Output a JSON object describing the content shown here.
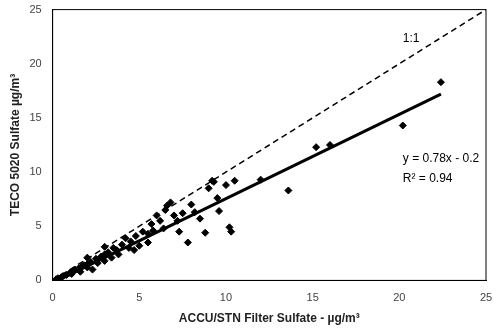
{
  "chart_data": {
    "type": "scatter",
    "x_label": "ACCU/STN Filter Sulfate - µg/m³",
    "y_label": "TECO 5020 Sulfate µg/m³",
    "xlim": [
      0,
      25
    ],
    "xticks": [
      0,
      5,
      10,
      15,
      20,
      25
    ],
    "ylim": [
      0,
      25
    ],
    "yticks": [
      0,
      5,
      10,
      15,
      20,
      25
    ],
    "grid": false,
    "series": [
      {
        "type": "scatter",
        "color": "#000000",
        "marker": "diamond",
        "x": [
          0.2,
          0.3,
          0.5,
          0.6,
          0.8,
          1.0,
          1.1,
          1.2,
          1.3,
          1.5,
          1.6,
          1.7,
          1.8,
          2.0,
          2.0,
          2.0,
          2.2,
          2.3,
          2.5,
          2.6,
          2.8,
          3.0,
          3.0,
          3.0,
          3.2,
          3.4,
          3.5,
          3.7,
          3.8,
          4.0,
          4.2,
          4.4,
          4.5,
          4.7,
          4.8,
          5.0,
          5.2,
          5.5,
          5.5,
          5.7,
          5.8,
          6.0,
          6.2,
          6.4,
          6.5,
          6.6,
          6.8,
          7.0,
          7.2,
          7.3,
          7.5,
          7.8,
          8.0,
          8.2,
          8.5,
          8.8,
          9.0,
          9.2,
          9.3,
          9.5,
          9.6,
          10.0,
          10.2,
          10.3,
          10.5,
          12.0,
          13.6,
          15.2,
          16.0,
          20.2,
          22.4
        ],
        "values": [
          0.1,
          0.2,
          0.3,
          0.4,
          0.5,
          0.7,
          0.6,
          0.9,
          1.0,
          1.1,
          0.8,
          1.3,
          1.4,
          1.5,
          1.2,
          2.1,
          1.7,
          1.0,
          2.0,
          1.6,
          2.2,
          2.4,
          1.8,
          3.1,
          2.6,
          2.1,
          3.0,
          2.8,
          2.4,
          3.3,
          3.9,
          3.0,
          3.6,
          2.8,
          4.1,
          3.2,
          4.5,
          3.5,
          4.3,
          5.2,
          4.6,
          6.0,
          5.5,
          4.8,
          6.5,
          6.9,
          7.2,
          6.0,
          5.5,
          4.5,
          6.2,
          3.5,
          7.0,
          6.3,
          5.7,
          4.4,
          8.5,
          9.2,
          9.1,
          7.6,
          6.4,
          8.8,
          4.9,
          4.5,
          9.2,
          9.3,
          8.3,
          12.3,
          12.5,
          14.3,
          18.3
        ]
      },
      {
        "type": "line",
        "color": "#000000",
        "line_style": "solid",
        "marker": "none",
        "x": [
          0.3,
          22.4
        ],
        "values": [
          0.0,
          17.2
        ]
      },
      {
        "type": "line",
        "color": "#000000",
        "line_style": "dashed",
        "marker": "none",
        "x": [
          0,
          25
        ],
        "values": [
          0,
          25
        ]
      }
    ],
    "annotations": [
      {
        "text": "1:1",
        "x": 20.2,
        "y": 22.3
      },
      {
        "text": "y = 0.78x - 0.2",
        "x": 20.2,
        "y": 11.2
      },
      {
        "text": "R² = 0.94",
        "x": 20.2,
        "y": 9.4
      }
    ]
  }
}
